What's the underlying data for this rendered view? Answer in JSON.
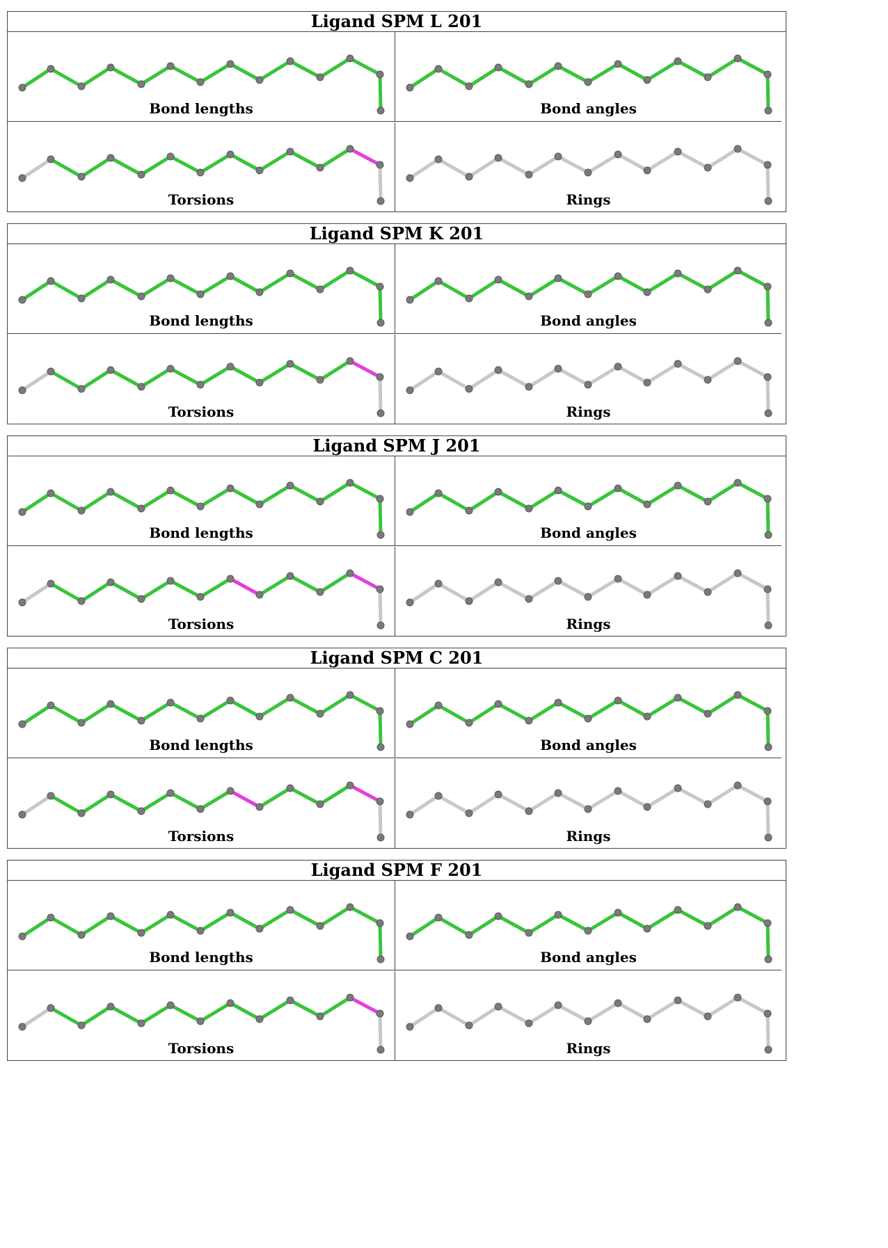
{
  "colors": {
    "ok": "#39c43a",
    "outlier": "#e040e0",
    "neutral": "#c8c8c8",
    "atom": "#7a7a7a"
  },
  "ligands": [
    {
      "title": "Ligand SPM L 201",
      "panels": [
        {
          "label": "Bond lengths",
          "bonds": [
            "ok",
            "ok",
            "ok",
            "ok",
            "ok",
            "ok",
            "ok",
            "ok",
            "ok",
            "ok",
            "ok",
            "ok",
            "ok"
          ]
        },
        {
          "label": "Bond angles",
          "bonds": [
            "ok",
            "ok",
            "ok",
            "ok",
            "ok",
            "ok",
            "ok",
            "ok",
            "ok",
            "ok",
            "ok",
            "ok",
            "ok"
          ]
        },
        {
          "label": "Torsions",
          "bonds": [
            "neutral",
            "ok",
            "ok",
            "ok",
            "ok",
            "ok",
            "ok",
            "ok",
            "ok",
            "ok",
            "ok",
            "outlier",
            "neutral"
          ]
        },
        {
          "label": "Rings",
          "bonds": [
            "neutral",
            "neutral",
            "neutral",
            "neutral",
            "neutral",
            "neutral",
            "neutral",
            "neutral",
            "neutral",
            "neutral",
            "neutral",
            "neutral",
            "neutral"
          ]
        }
      ]
    },
    {
      "title": "Ligand SPM K 201",
      "panels": [
        {
          "label": "Bond lengths",
          "bonds": [
            "ok",
            "ok",
            "ok",
            "ok",
            "ok",
            "ok",
            "ok",
            "ok",
            "ok",
            "ok",
            "ok",
            "ok",
            "ok"
          ]
        },
        {
          "label": "Bond angles",
          "bonds": [
            "ok",
            "ok",
            "ok",
            "ok",
            "ok",
            "ok",
            "ok",
            "ok",
            "ok",
            "ok",
            "ok",
            "ok",
            "ok"
          ]
        },
        {
          "label": "Torsions",
          "bonds": [
            "neutral",
            "ok",
            "ok",
            "ok",
            "ok",
            "ok",
            "ok",
            "ok",
            "ok",
            "ok",
            "ok",
            "outlier",
            "neutral"
          ]
        },
        {
          "label": "Rings",
          "bonds": [
            "neutral",
            "neutral",
            "neutral",
            "neutral",
            "neutral",
            "neutral",
            "neutral",
            "neutral",
            "neutral",
            "neutral",
            "neutral",
            "neutral",
            "neutral"
          ]
        }
      ]
    },
    {
      "title": "Ligand SPM J 201",
      "panels": [
        {
          "label": "Bond lengths",
          "bonds": [
            "ok",
            "ok",
            "ok",
            "ok",
            "ok",
            "ok",
            "ok",
            "ok",
            "ok",
            "ok",
            "ok",
            "ok",
            "ok"
          ]
        },
        {
          "label": "Bond angles",
          "bonds": [
            "ok",
            "ok",
            "ok",
            "ok",
            "ok",
            "ok",
            "ok",
            "ok",
            "ok",
            "ok",
            "ok",
            "ok",
            "ok"
          ]
        },
        {
          "label": "Torsions",
          "bonds": [
            "neutral",
            "ok",
            "ok",
            "ok",
            "ok",
            "ok",
            "ok",
            "outlier",
            "ok",
            "ok",
            "ok",
            "outlier",
            "neutral"
          ]
        },
        {
          "label": "Rings",
          "bonds": [
            "neutral",
            "neutral",
            "neutral",
            "neutral",
            "neutral",
            "neutral",
            "neutral",
            "neutral",
            "neutral",
            "neutral",
            "neutral",
            "neutral",
            "neutral"
          ]
        }
      ]
    },
    {
      "title": "Ligand SPM C 201",
      "panels": [
        {
          "label": "Bond lengths",
          "bonds": [
            "ok",
            "ok",
            "ok",
            "ok",
            "ok",
            "ok",
            "ok",
            "ok",
            "ok",
            "ok",
            "ok",
            "ok",
            "ok"
          ]
        },
        {
          "label": "Bond angles",
          "bonds": [
            "ok",
            "ok",
            "ok",
            "ok",
            "ok",
            "ok",
            "ok",
            "ok",
            "ok",
            "ok",
            "ok",
            "ok",
            "ok"
          ]
        },
        {
          "label": "Torsions",
          "bonds": [
            "neutral",
            "ok",
            "ok",
            "ok",
            "ok",
            "ok",
            "ok",
            "outlier",
            "ok",
            "ok",
            "ok",
            "outlier",
            "neutral"
          ]
        },
        {
          "label": "Rings",
          "bonds": [
            "neutral",
            "neutral",
            "neutral",
            "neutral",
            "neutral",
            "neutral",
            "neutral",
            "neutral",
            "neutral",
            "neutral",
            "neutral",
            "neutral",
            "neutral"
          ]
        }
      ]
    },
    {
      "title": "Ligand SPM F 201",
      "panels": [
        {
          "label": "Bond lengths",
          "bonds": [
            "ok",
            "ok",
            "ok",
            "ok",
            "ok",
            "ok",
            "ok",
            "ok",
            "ok",
            "ok",
            "ok",
            "ok",
            "ok"
          ]
        },
        {
          "label": "Bond angles",
          "bonds": [
            "ok",
            "ok",
            "ok",
            "ok",
            "ok",
            "ok",
            "ok",
            "ok",
            "ok",
            "ok",
            "ok",
            "ok",
            "ok"
          ]
        },
        {
          "label": "Torsions",
          "bonds": [
            "neutral",
            "ok",
            "ok",
            "ok",
            "ok",
            "ok",
            "ok",
            "ok",
            "ok",
            "ok",
            "ok",
            "outlier",
            "neutral"
          ]
        },
        {
          "label": "Rings",
          "bonds": [
            "neutral",
            "neutral",
            "neutral",
            "neutral",
            "neutral",
            "neutral",
            "neutral",
            "neutral",
            "neutral",
            "neutral",
            "neutral",
            "neutral",
            "neutral"
          ]
        }
      ]
    }
  ]
}
